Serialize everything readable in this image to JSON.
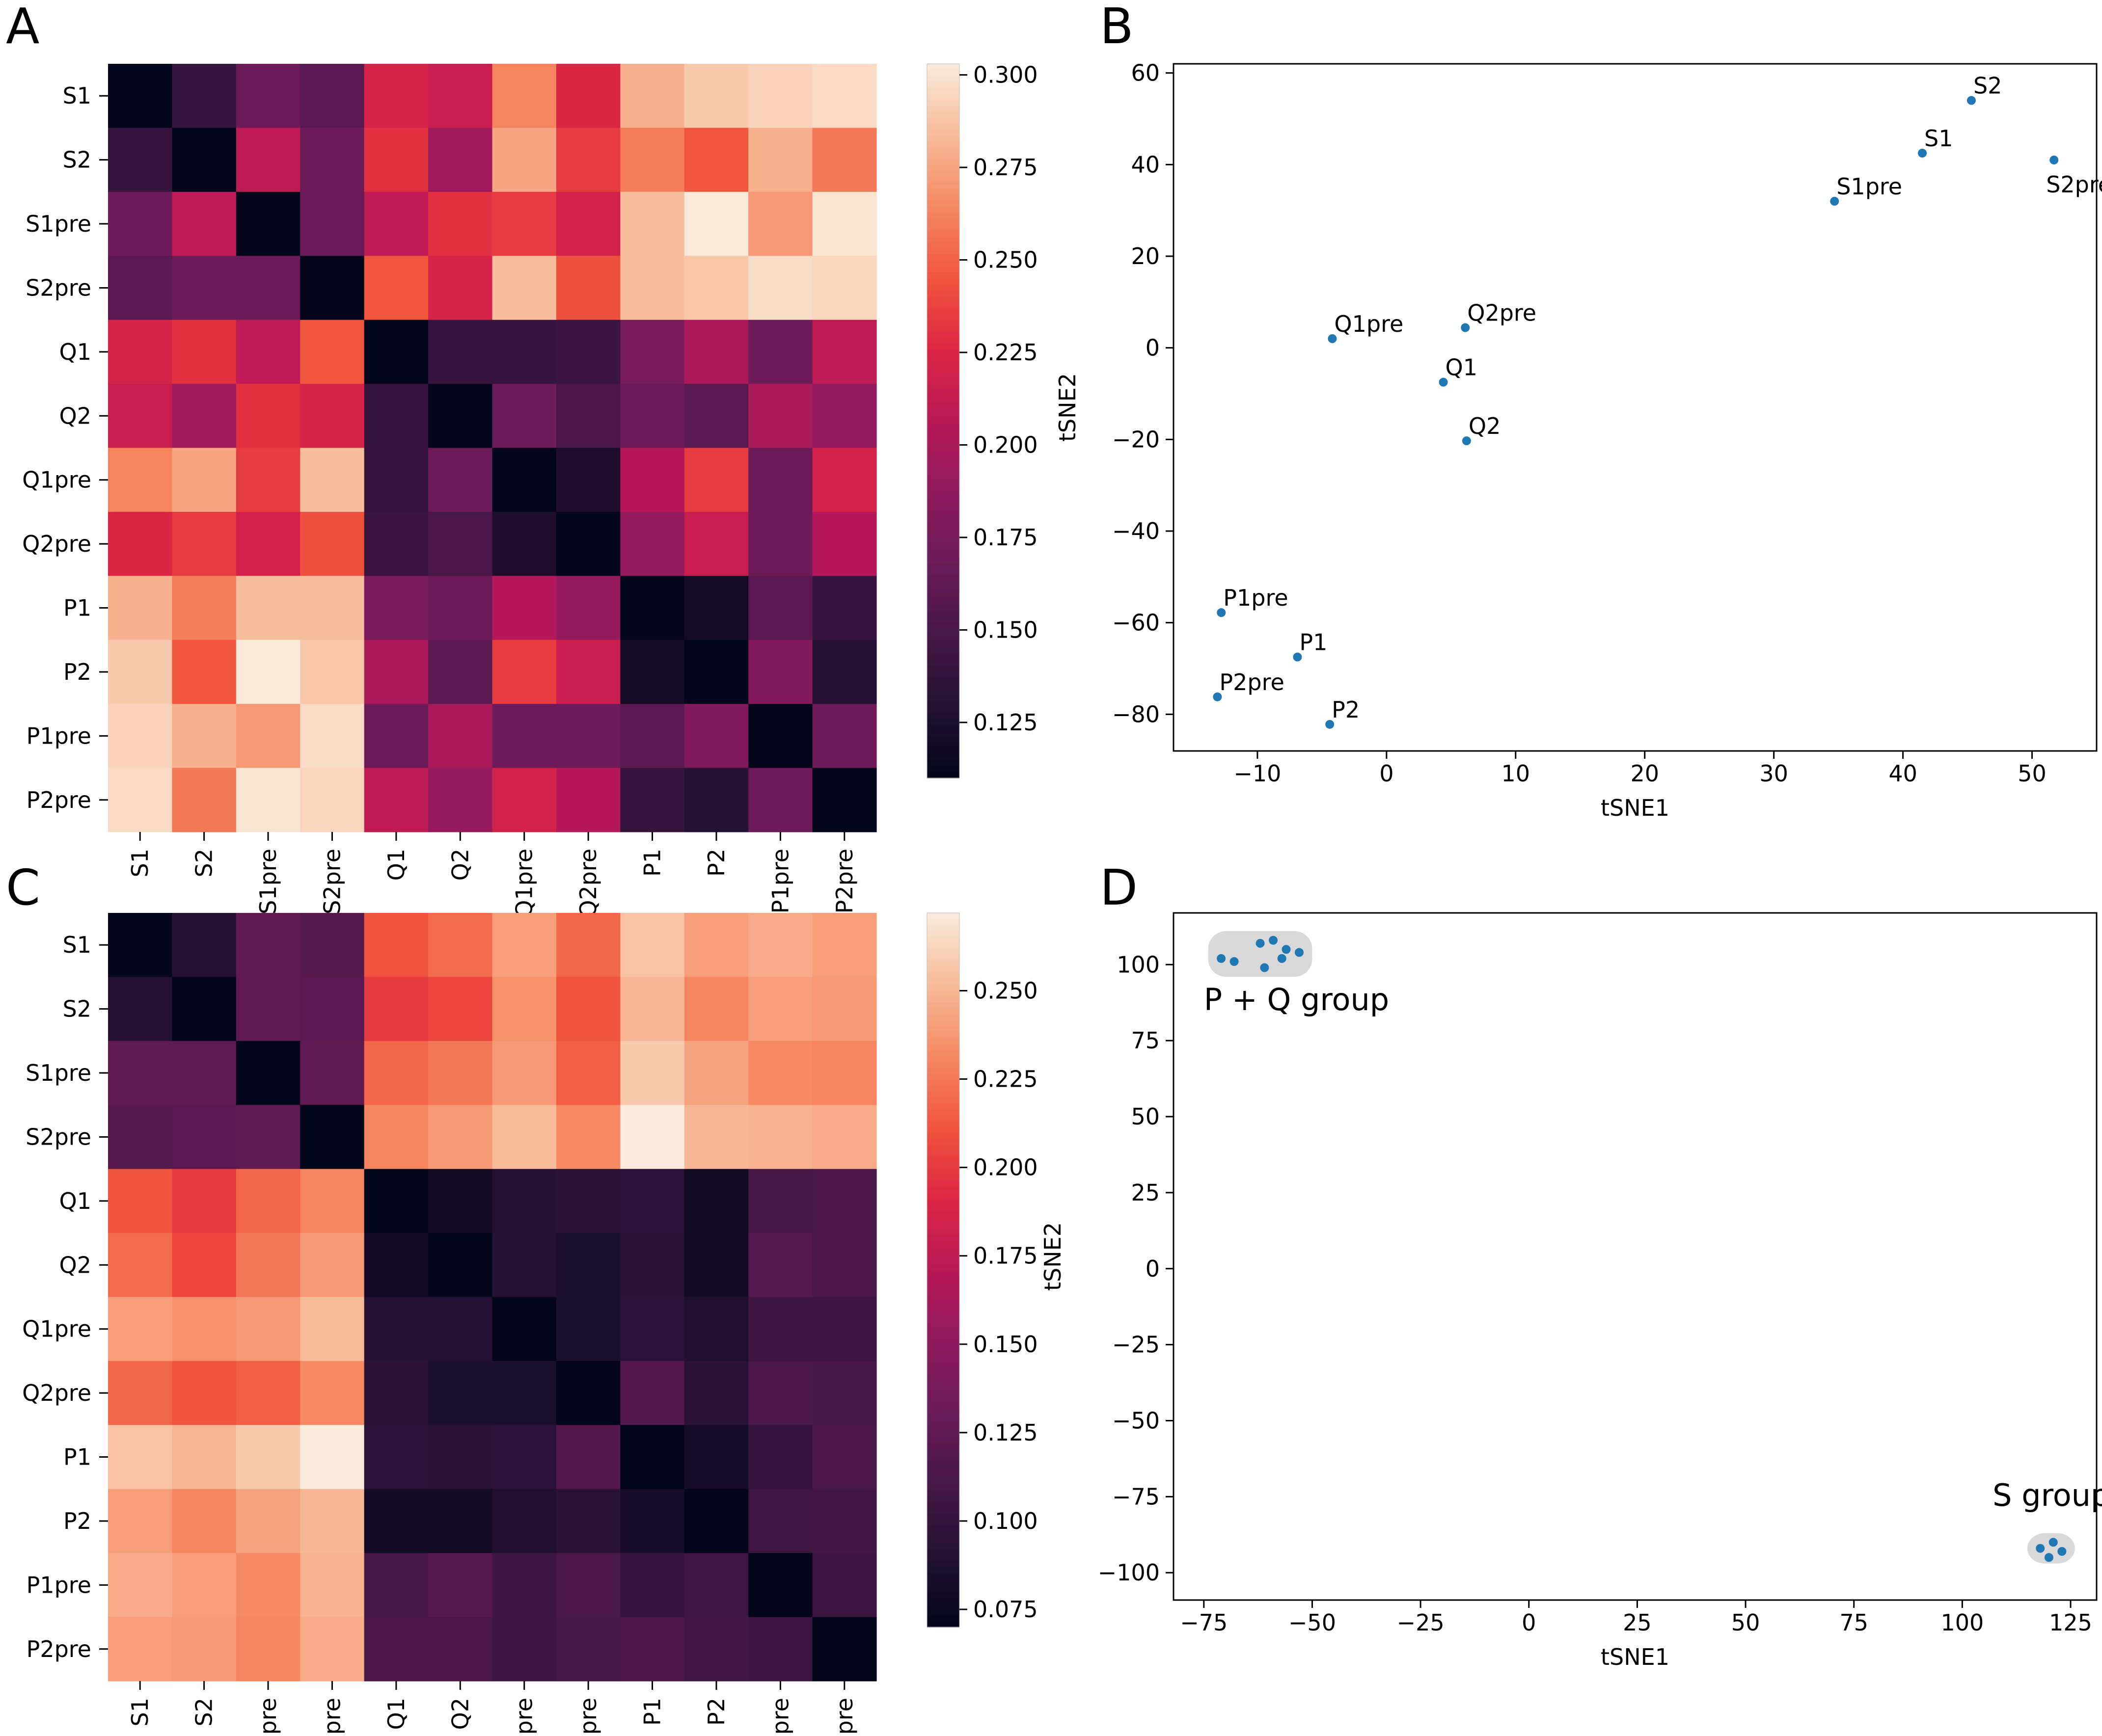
{
  "chart_data": [
    {
      "panel": "A",
      "type": "heatmap",
      "labels": [
        "S1",
        "S2",
        "S1pre",
        "S2pre",
        "Q1",
        "Q2",
        "Q1pre",
        "Q2pre",
        "P1",
        "P2",
        "P1pre",
        "P2pre"
      ],
      "matrix": [
        [
          0.11,
          0.14,
          0.17,
          0.16,
          0.222,
          0.215,
          0.262,
          0.225,
          0.28,
          0.29,
          0.293,
          0.296
        ],
        [
          0.14,
          0.11,
          0.21,
          0.17,
          0.23,
          0.195,
          0.275,
          0.235,
          0.26,
          0.245,
          0.28,
          0.258
        ],
        [
          0.17,
          0.21,
          0.11,
          0.17,
          0.21,
          0.23,
          0.235,
          0.22,
          0.285,
          0.302,
          0.27,
          0.3
        ],
        [
          0.16,
          0.17,
          0.17,
          0.11,
          0.245,
          0.222,
          0.285,
          0.243,
          0.285,
          0.288,
          0.297,
          0.294
        ],
        [
          0.222,
          0.23,
          0.21,
          0.245,
          0.11,
          0.14,
          0.14,
          0.142,
          0.175,
          0.2,
          0.17,
          0.21
        ],
        [
          0.215,
          0.195,
          0.23,
          0.222,
          0.14,
          0.11,
          0.17,
          0.15,
          0.17,
          0.16,
          0.2,
          0.19
        ],
        [
          0.262,
          0.275,
          0.235,
          0.285,
          0.14,
          0.17,
          0.11,
          0.125,
          0.205,
          0.235,
          0.17,
          0.22
        ],
        [
          0.225,
          0.235,
          0.22,
          0.243,
          0.142,
          0.15,
          0.125,
          0.11,
          0.19,
          0.215,
          0.17,
          0.205
        ],
        [
          0.28,
          0.26,
          0.285,
          0.285,
          0.175,
          0.17,
          0.205,
          0.19,
          0.11,
          0.12,
          0.16,
          0.14
        ],
        [
          0.29,
          0.245,
          0.302,
          0.288,
          0.2,
          0.16,
          0.235,
          0.215,
          0.12,
          0.11,
          0.18,
          0.13
        ],
        [
          0.293,
          0.28,
          0.27,
          0.297,
          0.17,
          0.2,
          0.17,
          0.17,
          0.16,
          0.18,
          0.11,
          0.17
        ],
        [
          0.296,
          0.258,
          0.3,
          0.294,
          0.21,
          0.19,
          0.22,
          0.205,
          0.14,
          0.13,
          0.17,
          0.11
        ]
      ],
      "vmin": 0.11,
      "vmax": 0.303,
      "colorbar_ticks": [
        0.125,
        0.15,
        0.175,
        0.2,
        0.225,
        0.25,
        0.275,
        0.3
      ],
      "colorbar_tick_labels": [
        "0.125",
        "0.150",
        "0.175",
        "0.200",
        "0.225",
        "0.250",
        "0.275",
        "0.300"
      ]
    },
    {
      "panel": "B",
      "type": "scatter",
      "xlabel": "tSNE1",
      "ylabel": "tSNE2",
      "xlim": [
        -16.5,
        55
      ],
      "ylim": [
        -88,
        62
      ],
      "xticks": [
        -10,
        0,
        10,
        20,
        30,
        40,
        50
      ],
      "yticks": [
        -80,
        -60,
        -40,
        -20,
        0,
        20,
        40,
        60
      ],
      "xtick_labels": [
        "−10",
        "0",
        "10",
        "20",
        "30",
        "40",
        "50"
      ],
      "ytick_labels": [
        "−80",
        "−60",
        "−40",
        "−20",
        "0",
        "20",
        "40",
        "60"
      ],
      "points": [
        {
          "label": "S2",
          "x": 45.3,
          "y": 54
        },
        {
          "label": "S1",
          "x": 41.5,
          "y": 42.5
        },
        {
          "label": "S2pre",
          "x": 51.7,
          "y": 41
        },
        {
          "label": "S1pre",
          "x": 34.7,
          "y": 32
        },
        {
          "label": "Q1pre",
          "x": -4.2,
          "y": 2
        },
        {
          "label": "Q2pre",
          "x": 6.1,
          "y": 4.4
        },
        {
          "label": "Q1",
          "x": 4.4,
          "y": -7.5
        },
        {
          "label": "Q2",
          "x": 6.2,
          "y": -20.3
        },
        {
          "label": "P1pre",
          "x": -12.8,
          "y": -57.8
        },
        {
          "label": "P1",
          "x": -6.9,
          "y": -67.5
        },
        {
          "label": "P2pre",
          "x": -13.1,
          "y": -76.2
        },
        {
          "label": "P2",
          "x": -4.4,
          "y": -82.2
        }
      ]
    },
    {
      "panel": "C",
      "type": "heatmap",
      "labels": [
        "S1",
        "S2",
        "S1pre",
        "S2pre",
        "Q1",
        "Q2",
        "Q1pre",
        "Q2pre",
        "P1",
        "P2",
        "P1pre",
        "P2pre"
      ],
      "matrix": [
        [
          0.07,
          0.09,
          0.125,
          0.12,
          0.21,
          0.22,
          0.24,
          0.218,
          0.255,
          0.24,
          0.245,
          0.24
        ],
        [
          0.09,
          0.07,
          0.125,
          0.122,
          0.2,
          0.205,
          0.235,
          0.21,
          0.25,
          0.23,
          0.24,
          0.238
        ],
        [
          0.125,
          0.125,
          0.07,
          0.125,
          0.218,
          0.225,
          0.238,
          0.215,
          0.258,
          0.242,
          0.232,
          0.23
        ],
        [
          0.12,
          0.122,
          0.125,
          0.07,
          0.23,
          0.238,
          0.252,
          0.232,
          0.272,
          0.25,
          0.248,
          0.245
        ],
        [
          0.21,
          0.2,
          0.218,
          0.23,
          0.07,
          0.08,
          0.09,
          0.093,
          0.095,
          0.08,
          0.11,
          0.112
        ],
        [
          0.22,
          0.205,
          0.225,
          0.238,
          0.08,
          0.07,
          0.09,
          0.085,
          0.093,
          0.08,
          0.12,
          0.112
        ],
        [
          0.24,
          0.235,
          0.238,
          0.252,
          0.09,
          0.09,
          0.07,
          0.085,
          0.095,
          0.088,
          0.105,
          0.105
        ],
        [
          0.218,
          0.21,
          0.215,
          0.232,
          0.093,
          0.085,
          0.085,
          0.07,
          0.118,
          0.093,
          0.113,
          0.11
        ],
        [
          0.255,
          0.25,
          0.258,
          0.272,
          0.095,
          0.093,
          0.095,
          0.118,
          0.07,
          0.082,
          0.1,
          0.112
        ],
        [
          0.24,
          0.23,
          0.242,
          0.25,
          0.08,
          0.08,
          0.088,
          0.093,
          0.082,
          0.07,
          0.106,
          0.108
        ],
        [
          0.245,
          0.24,
          0.232,
          0.248,
          0.11,
          0.12,
          0.105,
          0.113,
          0.1,
          0.106,
          0.07,
          0.105
        ],
        [
          0.24,
          0.238,
          0.23,
          0.245,
          0.112,
          0.112,
          0.105,
          0.11,
          0.112,
          0.108,
          0.105,
          0.07
        ]
      ],
      "vmin": 0.07,
      "vmax": 0.272,
      "colorbar_ticks": [
        0.075,
        0.1,
        0.125,
        0.15,
        0.175,
        0.2,
        0.225,
        0.25
      ],
      "colorbar_tick_labels": [
        "0.075",
        "0.100",
        "0.125",
        "0.150",
        "0.175",
        "0.200",
        "0.225",
        "0.250"
      ]
    },
    {
      "panel": "D",
      "type": "scatter",
      "xlabel": "tSNE1",
      "ylabel": "tSNE2",
      "xlim": [
        -82,
        131
      ],
      "ylim": [
        -109,
        117
      ],
      "xticks": [
        -75,
        -50,
        -25,
        0,
        25,
        50,
        75,
        100,
        125
      ],
      "yticks": [
        -100,
        -75,
        -50,
        -25,
        0,
        25,
        50,
        75,
        100
      ],
      "xtick_labels": [
        "−75",
        "−50",
        "−25",
        "0",
        "25",
        "50",
        "75",
        "100",
        "125"
      ],
      "ytick_labels": [
        "−100",
        "−75",
        "−50",
        "−25",
        "0",
        "25",
        "50",
        "75",
        "100"
      ],
      "points": [
        {
          "x": -71,
          "y": 102
        },
        {
          "x": -68,
          "y": 101
        },
        {
          "x": -62,
          "y": 107
        },
        {
          "x": -59,
          "y": 108
        },
        {
          "x": -56,
          "y": 105
        },
        {
          "x": -53,
          "y": 104
        },
        {
          "x": -61,
          "y": 99
        },
        {
          "x": -57,
          "y": 102
        },
        {
          "x": 118,
          "y": -92
        },
        {
          "x": 121,
          "y": -90
        },
        {
          "x": 120,
          "y": -95
        },
        {
          "x": 123,
          "y": -93
        }
      ],
      "groups": [
        {
          "label": "P + Q group",
          "x_range": [
            -74,
            -50
          ],
          "y_range": [
            96,
            111
          ],
          "label_x": -75,
          "label_y": 85
        },
        {
          "label": "S group",
          "x_range": [
            115,
            126
          ],
          "y_range": [
            -97,
            -87
          ],
          "label_x": 107,
          "label_y": -78
        }
      ]
    }
  ],
  "panel_letters": {
    "A": "A",
    "B": "B",
    "C": "C",
    "D": "D"
  },
  "colors": {
    "point": "#1f77b4",
    "group_box": "#d9d9d9"
  },
  "colormap": "rocket"
}
